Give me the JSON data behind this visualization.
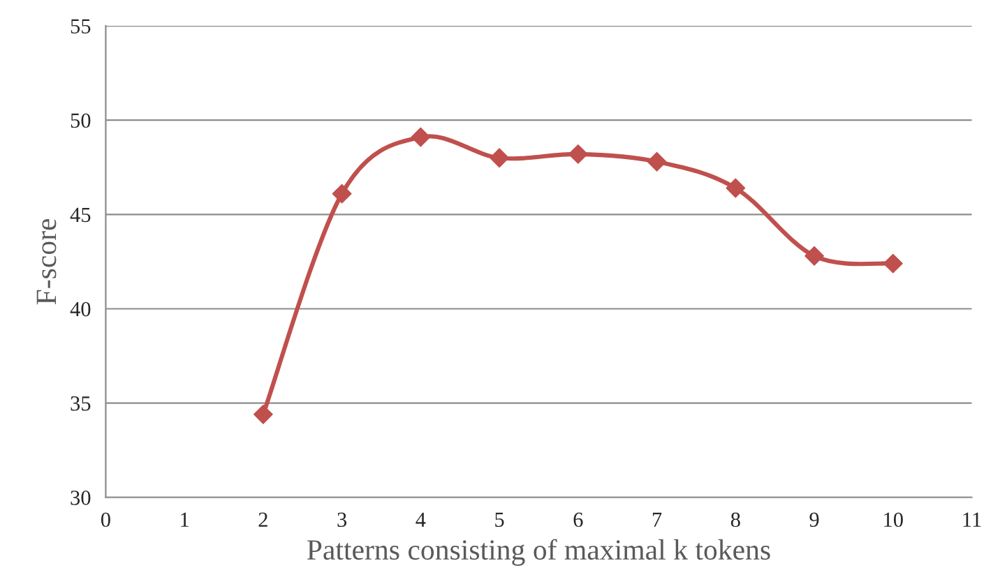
{
  "chart_data": {
    "type": "line",
    "xlabel": "Patterns consisting of maximal k tokens",
    "ylabel": "F-score",
    "x": [
      2,
      3,
      4,
      5,
      6,
      7,
      8,
      9,
      10
    ],
    "series": [
      {
        "color": "#c0504d",
        "values": [
          34.4,
          46.1,
          49.1,
          48.0,
          48.2,
          47.8,
          46.4,
          42.8,
          42.4
        ]
      }
    ],
    "xlim": [
      0,
      11
    ],
    "xticks": [
      0,
      1,
      2,
      3,
      4,
      5,
      6,
      7,
      8,
      9,
      10,
      11
    ],
    "ylim": [
      30,
      55
    ],
    "yticks": [
      30,
      35,
      40,
      45,
      50,
      55
    ],
    "grid": "y",
    "marker": "diamond",
    "line_style": "solid",
    "legend": false
  }
}
